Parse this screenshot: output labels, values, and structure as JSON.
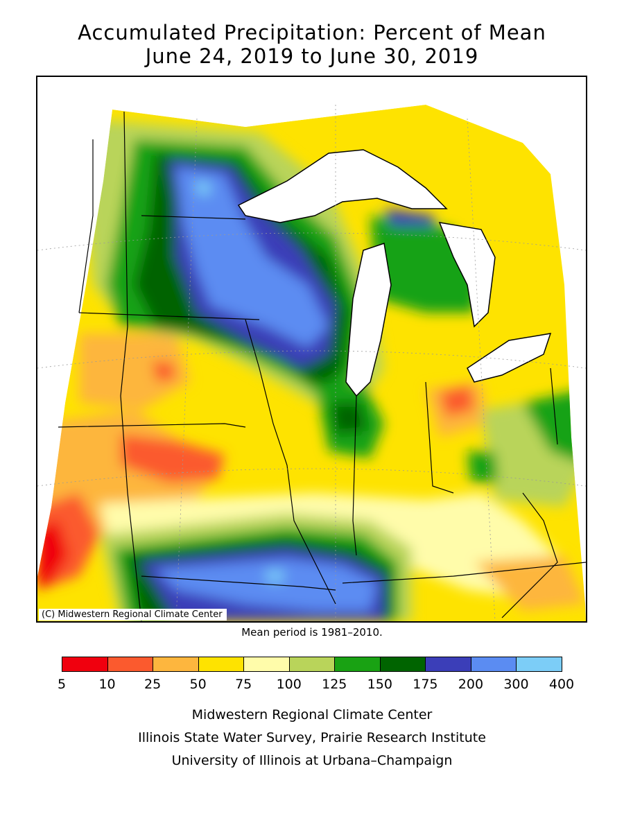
{
  "title": {
    "line1": "Accumulated Precipitation: Percent of Mean",
    "line2": "June 24, 2019 to June 30, 2019"
  },
  "map": {
    "copyright": "(C) Midwestern Regional Climate Center",
    "colors": {
      "c5_10": "#f0000e",
      "c10_25": "#fb5a2e",
      "c25_50": "#fdb63e",
      "c50_75": "#fee300",
      "c75_100": "#fffcaa",
      "c100_125": "#b9d45a",
      "c125_150": "#19a213",
      "c150_175": "#006400",
      "c175_200": "#3b3eb8",
      "c200_300": "#5b8cf2",
      "c300_400": "#7ccdf7",
      "water": "#ffffff",
      "border": "#000000"
    }
  },
  "mean_period": "Mean period is 1981–2010.",
  "legend": {
    "colors": [
      "#f0000e",
      "#fb5a2e",
      "#fdb63e",
      "#fee300",
      "#fffcaa",
      "#b9d45a",
      "#19a213",
      "#006400",
      "#3b3eb8",
      "#5b8cf2",
      "#7ccdf7"
    ],
    "labels": [
      "5",
      "10",
      "25",
      "50",
      "75",
      "100",
      "125",
      "150",
      "175",
      "200",
      "300",
      "400"
    ]
  },
  "credits": {
    "line1": "Midwestern Regional Climate Center",
    "line2": "Illinois State Water Survey, Prairie Research Institute",
    "line3": "University of Illinois at Urbana–Champaign"
  }
}
